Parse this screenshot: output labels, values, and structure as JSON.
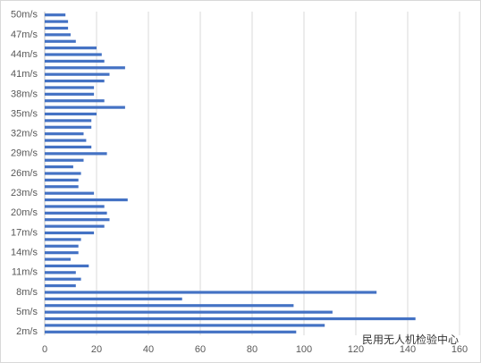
{
  "chart_data": {
    "type": "bar",
    "orientation": "horizontal",
    "color": "#4472c4",
    "categories": [
      "2m/s",
      null,
      null,
      "5m/s",
      null,
      null,
      "8m/s",
      null,
      null,
      "11m/s",
      null,
      null,
      "14m/s",
      null,
      null,
      "17m/s",
      null,
      null,
      "20m/s",
      null,
      null,
      "23m/s",
      null,
      null,
      "26m/s",
      null,
      null,
      "29m/s",
      null,
      null,
      "32m/s",
      null,
      null,
      "35m/s",
      null,
      null,
      "38m/s",
      null,
      null,
      "41m/s",
      null,
      null,
      "44m/s",
      null,
      null,
      "47m/s",
      null,
      null,
      "50m/s"
    ],
    "values": [
      97,
      108,
      143,
      111,
      96,
      53,
      128,
      12,
      14,
      12,
      17,
      10,
      13,
      13,
      14,
      19,
      23,
      25,
      24,
      23,
      32,
      19,
      13,
      13,
      14,
      11,
      15,
      24,
      18,
      16,
      15,
      18,
      18,
      20,
      31,
      23,
      19,
      19,
      23,
      25,
      31,
      23,
      22,
      20,
      12,
      10,
      9,
      9,
      8
    ],
    "xlim": [
      0,
      160
    ],
    "xticks": [
      0,
      20,
      40,
      60,
      80,
      100,
      120,
      140,
      160
    ],
    "grid": true
  },
  "watermark": "民用无人机检验中心"
}
